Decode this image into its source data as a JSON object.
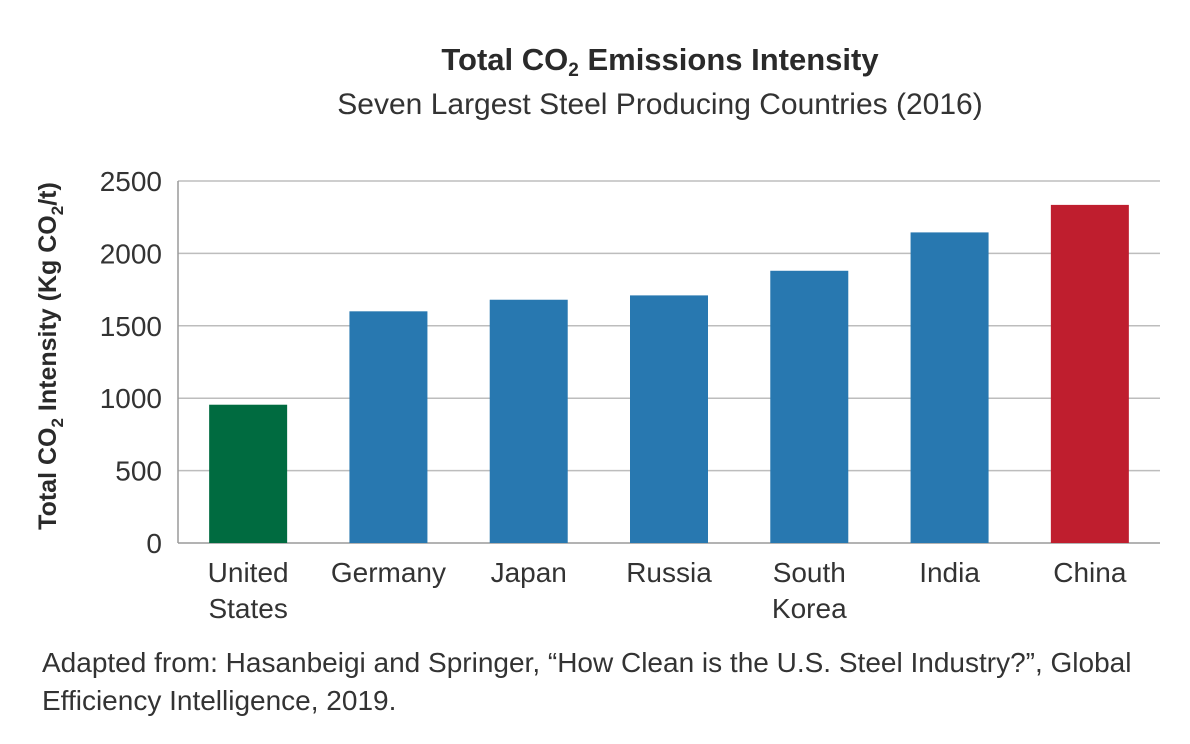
{
  "chart_data": {
    "type": "bar",
    "title": {
      "main": "Total CO",
      "sub": "2",
      "rest": " Emissions Intensity"
    },
    "subtitle": "Seven Largest Steel Producing Countries (2016)",
    "ylabel": {
      "part1": "Total CO",
      "sub1": "2",
      "part2": " Intensity (Kg CO",
      "sub2": "2",
      "part3": "/t)"
    },
    "xlabel": "",
    "ylim": [
      0,
      2500
    ],
    "yticks": [
      "0",
      "500",
      "1000",
      "1500",
      "2000",
      "2500"
    ],
    "grid": true,
    "categories": [
      [
        "United",
        "States"
      ],
      [
        "Germany"
      ],
      [
        "Japan"
      ],
      [
        "Russia"
      ],
      [
        "South",
        "Korea"
      ],
      [
        "India"
      ],
      [
        "China"
      ]
    ],
    "values": [
      955,
      1600,
      1680,
      1710,
      1880,
      2145,
      2335
    ],
    "colors": [
      "#006b40",
      "#2878b0",
      "#2878b0",
      "#2878b0",
      "#2878b0",
      "#2878b0",
      "#bf1e2e"
    ]
  },
  "source": "Adapted from: Hasanbeigi and Springer, “How Clean is the U.S. Steel Industry?”, Global Efficiency Intelligence, 2019."
}
